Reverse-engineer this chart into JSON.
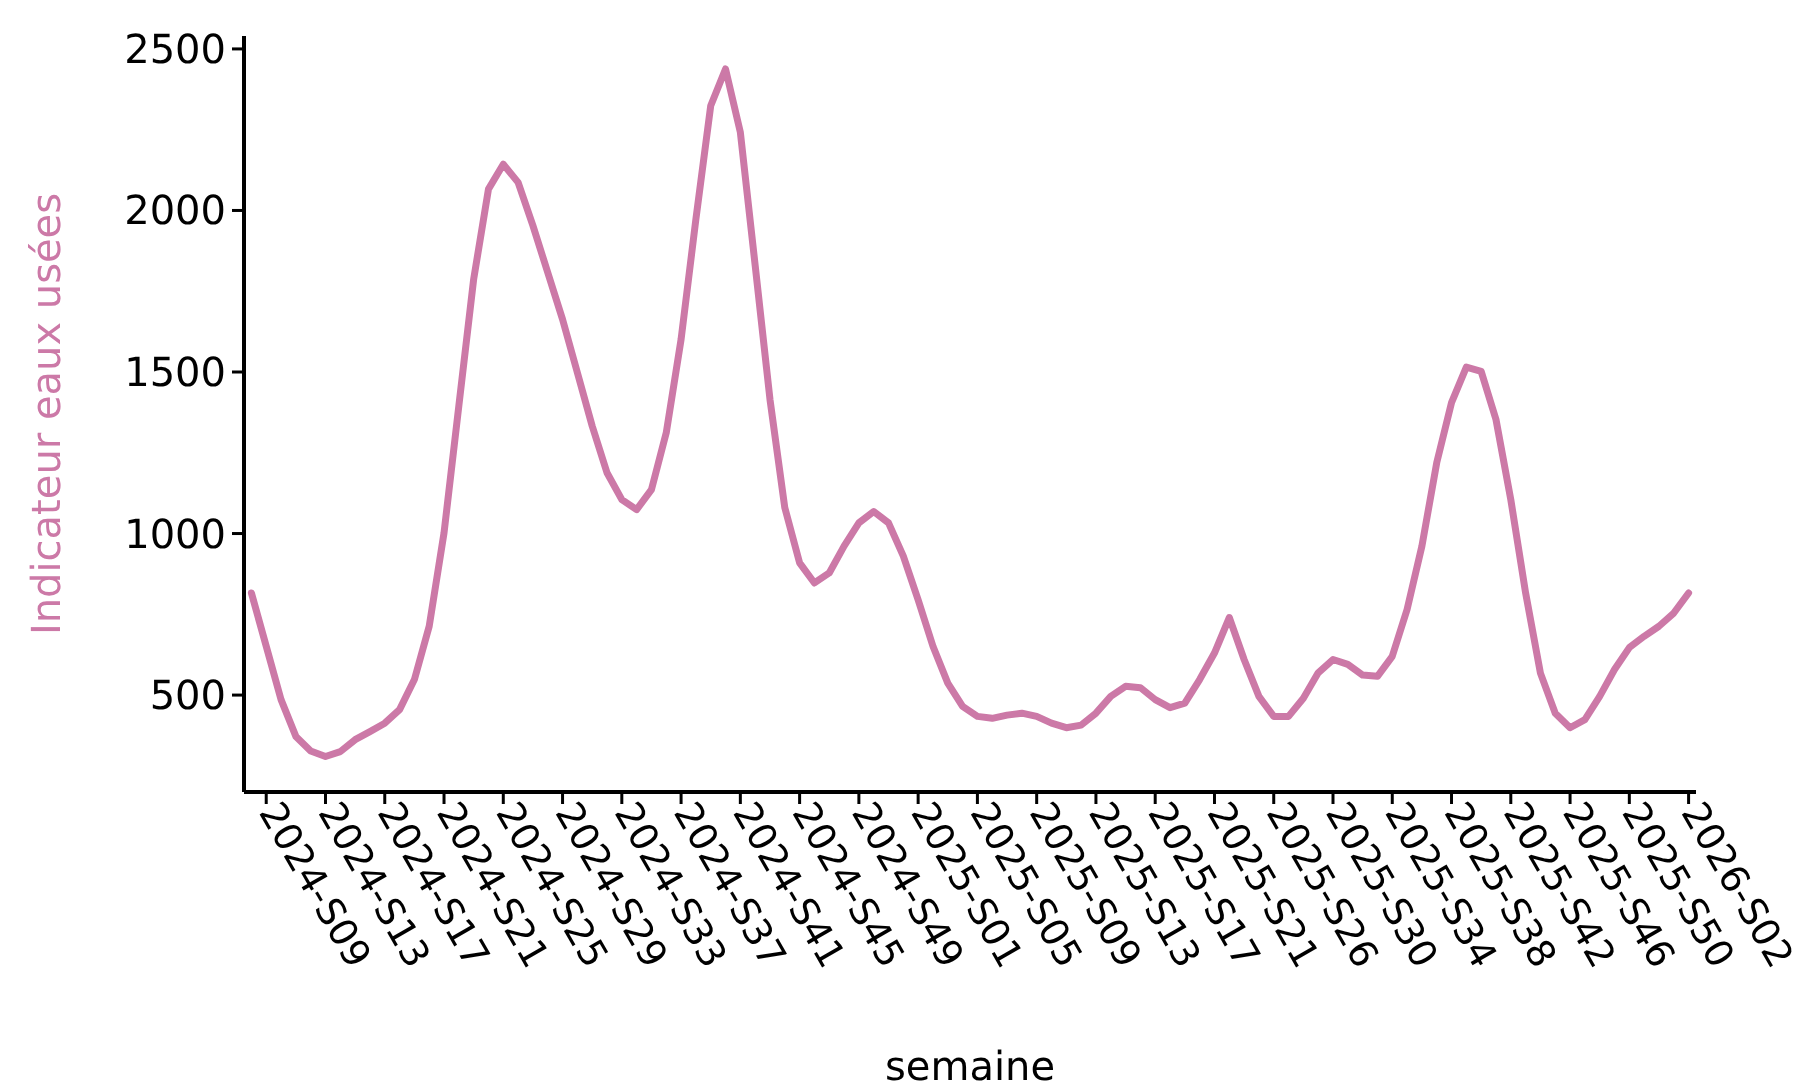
{
  "chart_data": {
    "type": "line",
    "xlabel": "semaine",
    "ylabel": "Indicateur eaux usées",
    "categories": [
      null,
      "2024-S09",
      null,
      null,
      null,
      "2024-S13",
      null,
      null,
      null,
      "2024-S17",
      null,
      null,
      null,
      "2024-S21",
      null,
      null,
      null,
      "2024-S25",
      null,
      null,
      null,
      "2024-S29",
      null,
      null,
      null,
      "2024-S33",
      null,
      null,
      null,
      "2024-S37",
      null,
      null,
      null,
      "2024-S41",
      null,
      null,
      null,
      "2024-S45",
      null,
      null,
      null,
      "2024-S49",
      null,
      null,
      null,
      "2025-S01",
      null,
      null,
      null,
      "2025-S05",
      null,
      null,
      null,
      "2025-S09",
      null,
      null,
      null,
      "2025-S13",
      null,
      null,
      null,
      "2025-S17",
      null,
      null,
      null,
      "2025-S21",
      null,
      null,
      null,
      "2025-S26",
      null,
      null,
      null,
      "2025-S30",
      null,
      null,
      null,
      "2025-S34",
      null,
      null,
      null,
      "2025-S38",
      null,
      null,
      null,
      "2025-S42",
      null,
      null,
      null,
      "2025-S46",
      null,
      null,
      null,
      "2025-S50",
      null,
      null,
      null,
      "2026-S02"
    ],
    "series": [
      {
        "color": "#cc79a7",
        "values": [
          816,
          651,
          486,
          372,
          327,
          310,
          325,
          362,
          387,
          413,
          455,
          548,
          713,
          1002,
          1395,
          1787,
          2066,
          2143,
          2087,
          1953,
          1808,
          1663,
          1498,
          1333,
          1188,
          1105,
          1074,
          1136,
          1312,
          1601,
          1973,
          2324,
          2438,
          2242,
          1830,
          1415,
          1080,
          909,
          847,
          878,
          961,
          1033,
          1068,
          1033,
          930,
          795,
          651,
          537,
          465,
          434,
          428,
          438,
          444,
          434,
          413,
          399,
          407,
          444,
          496,
          527,
          523,
          486,
          461,
          475,
          548,
          630,
          740,
          610,
          496,
          434,
          434,
          490,
          569,
          610,
          595,
          562,
          558,
          620,
          765,
          961,
          1219,
          1405,
          1515,
          1502,
          1353,
          1105,
          816,
          568,
          444,
          399,
          424,
          496,
          579,
          647,
          682,
          713,
          754,
          816
        ]
      }
    ],
    "ylim": [
      200,
      2540
    ],
    "yticks": [
      500,
      1000,
      1500,
      2000,
      2500
    ],
    "grid": false,
    "marker": "none",
    "line_style": "solid"
  }
}
